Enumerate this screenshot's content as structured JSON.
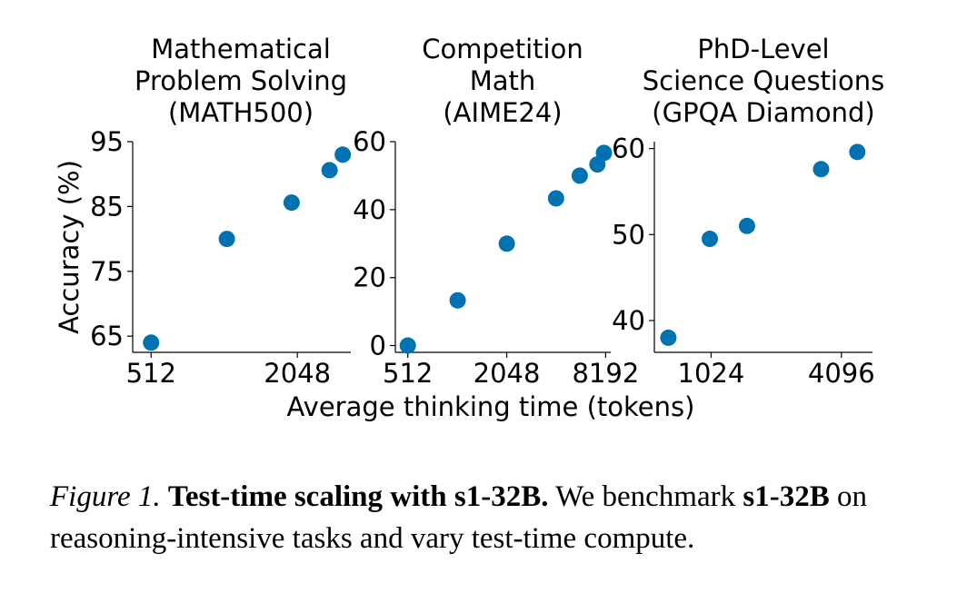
{
  "chart_data": [
    {
      "type": "scatter",
      "title": "Mathematical\nProblem Solving\n(MATH500)",
      "ylabel": "Accuracy (%)",
      "xlabel": "",
      "x_scale": "log2",
      "xlim": [
        430,
        3400
      ],
      "ylim": [
        62.5,
        95
      ],
      "xticks": [
        512,
        2048
      ],
      "yticks": [
        65,
        75,
        85,
        95
      ],
      "color": "#0072b2",
      "points": [
        {
          "x": 512,
          "y": 64
        },
        {
          "x": 1050,
          "y": 80
        },
        {
          "x": 1940,
          "y": 85.6
        },
        {
          "x": 2780,
          "y": 90.6
        },
        {
          "x": 3150,
          "y": 93
        }
      ]
    },
    {
      "type": "scatter",
      "title": "Competition\nMath\n(AIME24)",
      "ylabel": "",
      "xlabel": "",
      "x_scale": "log2",
      "xlim": [
        430,
        8800
      ],
      "ylim": [
        -2,
        60
      ],
      "xticks": [
        512,
        2048,
        8192
      ],
      "yticks": [
        0,
        20,
        40,
        60
      ],
      "color": "#0072b2",
      "points": [
        {
          "x": 512,
          "y": 0
        },
        {
          "x": 1030,
          "y": 13.3
        },
        {
          "x": 2050,
          "y": 30
        },
        {
          "x": 4090,
          "y": 43.3
        },
        {
          "x": 5700,
          "y": 50
        },
        {
          "x": 7300,
          "y": 53.3
        },
        {
          "x": 8000,
          "y": 56.7
        }
      ]
    },
    {
      "type": "scatter",
      "title": "PhD-Level\nScience Questions\n(GPQA Diamond)",
      "ylabel": "",
      "xlabel": "",
      "x_scale": "log2",
      "xlim": [
        560,
        5700
      ],
      "ylim": [
        36.3,
        60.8
      ],
      "xticks": [
        1024,
        4096
      ],
      "yticks": [
        40,
        50,
        60
      ],
      "color": "#0072b2",
      "points": [
        {
          "x": 650,
          "y": 38
        },
        {
          "x": 1010,
          "y": 49.5
        },
        {
          "x": 1500,
          "y": 51
        },
        {
          "x": 3300,
          "y": 57.6
        },
        {
          "x": 4850,
          "y": 59.6
        }
      ]
    }
  ],
  "shared_xlabel": "Average thinking time (tokens)",
  "caption": {
    "label": "Figure 1.",
    "bold": "Test-time scaling with s1-32B.",
    "text_1": "We benchmark",
    "bold_2": "s1-32B",
    "text_2": "on reasoning-intensive tasks and vary test-time compute."
  }
}
